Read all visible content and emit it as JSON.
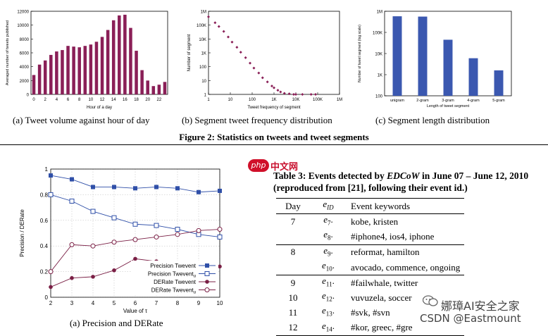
{
  "figure2": {
    "caption": "Figure 2: Statistics on tweets and tweet segments",
    "a": {
      "caption": "(a) Tweet volume against hour of day"
    },
    "b": {
      "caption": "(b) Segment tweet frequency distribution"
    },
    "c": {
      "caption": "(c) Segment length distribution"
    }
  },
  "figure3a": {
    "caption": "(a) Precision and DERate"
  },
  "table3": {
    "title_line1_pre": "Table 3: Events detected by ",
    "title_line1_em": "EDCoW",
    "title_line1_post": " in June 07 – June 12, 2010",
    "title_line2": "(reproduced from [21], following their event id.)",
    "header": {
      "day": "Day",
      "eid": "e",
      "eid_sub": "ID",
      "keywords": "Event keywords"
    },
    "rows": [
      {
        "day": "7",
        "eid": "e",
        "eid_sub": "7",
        "suffix": ".",
        "keywords": "kobe, kristen"
      },
      {
        "day": "",
        "eid": "e",
        "eid_sub": "8",
        "suffix": ".",
        "keywords": "#iphone4, ios4, iphone"
      },
      {
        "day": "8",
        "eid": "e",
        "eid_sub": "9",
        "suffix": ".",
        "keywords": "reformat, hamilton"
      },
      {
        "day": "",
        "eid": "e",
        "eid_sub": "10",
        "suffix": ".",
        "keywords": "avocado, commence, ongoing"
      },
      {
        "day": "9",
        "eid": "e",
        "eid_sub": "11",
        "suffix": ".",
        "keywords": "#failwhale, twitter"
      },
      {
        "day": "10",
        "eid": "e",
        "eid_sub": "12",
        "suffix": ".",
        "keywords": "vuvuzela, soccer"
      },
      {
        "day": "11",
        "eid": "e",
        "eid_sub": "13",
        "suffix": ".",
        "keywords": "#svk, #svn"
      },
      {
        "day": "12",
        "eid": "e",
        "eid_sub": "14",
        "suffix": ".",
        "keywords": "#kor, greec, #gre"
      }
    ]
  },
  "watermark": {
    "logo": "php",
    "logo_cn": "中文网",
    "line1": "娜璋AI安全之家",
    "line2": "CSDN @Eastmount"
  },
  "colors": {
    "hist": "#8a1f57",
    "scatter": "#8a1f57",
    "bars_blue": "#3b58b0",
    "lines": "#2f4fa8",
    "derate": "#7a1f45",
    "watermark_red": "#c8102e"
  },
  "chart_data": [
    {
      "type": "bar",
      "xlabel": "Hour of a day",
      "ylabel": "Averaged number of tweets published",
      "ylim": [
        0,
        12000
      ],
      "yticks": [
        0,
        2000,
        4000,
        6000,
        8000,
        10000,
        12000
      ],
      "xticks": [
        0,
        2,
        4,
        6,
        8,
        10,
        12,
        14,
        16,
        18,
        20,
        22
      ],
      "categories": [
        0,
        1,
        2,
        3,
        4,
        5,
        6,
        7,
        8,
        9,
        10,
        11,
        12,
        13,
        14,
        15,
        16,
        17,
        18,
        19,
        20,
        21,
        22,
        23
      ],
      "values": [
        2800,
        4300,
        4900,
        5700,
        6200,
        6400,
        7000,
        6900,
        6800,
        7000,
        7200,
        7600,
        8300,
        9300,
        10700,
        11400,
        11500,
        9600,
        6300,
        3500,
        2000,
        1200,
        1400,
        1800
      ],
      "color": "#8a1f57"
    },
    {
      "type": "scatter",
      "xlabel": "Tweet frequency of segment",
      "ylabel": "Number of segment",
      "x_scale": "log",
      "y_scale": "log",
      "xticks": [
        "1",
        "10",
        "100",
        "1K",
        "10K",
        "100K",
        "1M"
      ],
      "yticks": [
        "1",
        "10",
        "100",
        "1K",
        "10K",
        "100K",
        "1M"
      ],
      "x": [
        1,
        2,
        3,
        5,
        8,
        12,
        20,
        30,
        50,
        80,
        120,
        200,
        300,
        500,
        800,
        1000,
        1500,
        2000,
        3000,
        5000,
        8000,
        10000,
        20000,
        50000,
        80000
      ],
      "y": [
        400000,
        150000,
        80000,
        35000,
        14000,
        6000,
        2500,
        1100,
        450,
        180,
        80,
        35,
        16,
        8,
        4,
        3,
        2,
        1.5,
        1.2,
        1.1,
        1,
        1,
        1,
        1,
        1
      ],
      "color": "#8a1f57"
    },
    {
      "type": "bar",
      "xlabel": "Length of tweet segment",
      "ylabel": "Number of tweet segment (log scale)",
      "y_scale": "log",
      "yticks": [
        "1",
        "10",
        "100",
        "1K",
        "10K",
        "100K",
        "1M"
      ],
      "ylim_log": [
        2,
        6
      ],
      "categories": [
        "unigram",
        "2-gram",
        "3-gram",
        "4-gram",
        "5-gram"
      ],
      "values": [
        580000,
        560000,
        45000,
        6000,
        1600
      ],
      "color": "#3b58b0"
    },
    {
      "type": "line",
      "xlabel": "Value of τ",
      "ylabel": "Precision / DERate",
      "xlim": [
        2,
        10
      ],
      "ylim": [
        0,
        1
      ],
      "xticks": [
        2,
        3,
        4,
        5,
        6,
        7,
        8,
        9,
        10
      ],
      "yticks": [
        0,
        0.2,
        0.4,
        0.6,
        0.8,
        1
      ],
      "x": [
        2,
        3,
        4,
        5,
        6,
        7,
        8,
        9,
        10
      ],
      "legend_position": "bottom-right",
      "series": [
        {
          "name": "Precision Twevent",
          "marker": "filled-square",
          "color": "#2f4fa8",
          "values": [
            0.95,
            0.92,
            0.86,
            0.86,
            0.85,
            0.86,
            0.85,
            0.82,
            0.83
          ]
        },
        {
          "name": "Precision Twevent",
          "name_sub": "u",
          "marker": "open-square",
          "color": "#2f4fa8",
          "values": [
            0.8,
            0.75,
            0.67,
            0.62,
            0.57,
            0.56,
            0.53,
            0.49,
            0.47
          ]
        },
        {
          "name": "DERate Twevent",
          "marker": "filled-circle",
          "color": "#7a1f45",
          "values": [
            0.08,
            0.15,
            0.16,
            0.21,
            0.3,
            0.28,
            0.27,
            0.26,
            0.24
          ]
        },
        {
          "name": "DERate Twevent",
          "name_sub": "u",
          "marker": "open-circle",
          "color": "#7a1f45",
          "values": [
            0.2,
            0.41,
            0.4,
            0.43,
            0.45,
            0.47,
            0.49,
            0.52,
            0.53
          ]
        }
      ]
    }
  ]
}
